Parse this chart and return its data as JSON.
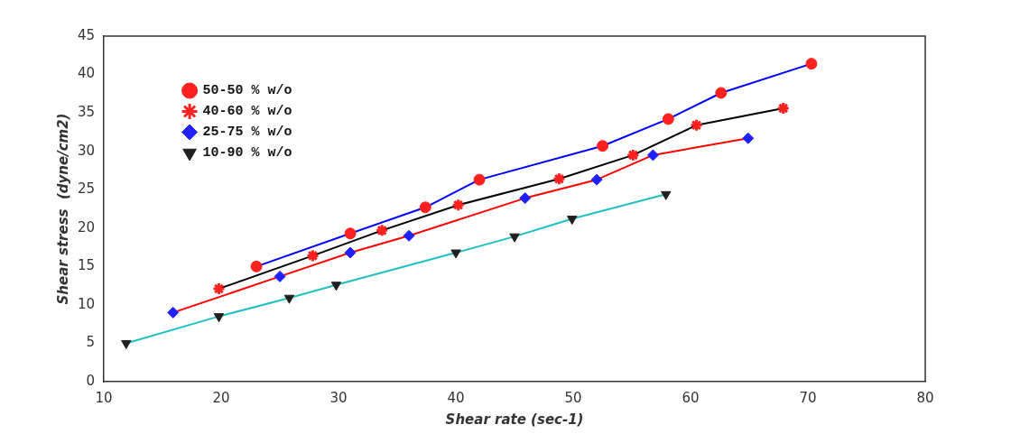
{
  "chart_data": {
    "type": "line",
    "xlabel": "Shear rate (sec-1)",
    "ylabel": "Shear stress  (dyne/cm2)",
    "xlim": [
      10,
      80
    ],
    "xticks": [
      10,
      20,
      30,
      40,
      50,
      60,
      70,
      80
    ],
    "ylim": [
      0,
      45
    ],
    "yticks": [
      0,
      5,
      10,
      15,
      20,
      25,
      30,
      35,
      40,
      45
    ],
    "grid": false,
    "legend": "top left",
    "line_style": "solid",
    "series": [
      {
        "name": "50-50 % w/o",
        "color": "#0000ff",
        "marker": "circle",
        "colors": [
          "#ff2020",
          "#ff2020",
          "#ff2020",
          "#ff2020",
          "#ff2020",
          "#ff2020",
          "#ff2020",
          "#ff2020"
        ],
        "x": [
          23,
          31,
          37.4,
          42,
          52.5,
          58.1,
          62.6,
          70.3
        ],
        "values": [
          15,
          19.3,
          22.7,
          26.3,
          30.7,
          34.2,
          37.6,
          41.4
        ]
      },
      {
        "name": "40-60 % w/o",
        "color": "#000000",
        "marker": "cross",
        "colors": [
          "#ff2020",
          "#ff2020",
          "#ff2020",
          "#ff2020",
          "#ff2020",
          "#ff2020",
          "#ff2020",
          "#ff2020"
        ],
        "x": [
          19.8,
          27.8,
          33.7,
          40.2,
          48.8,
          55.1,
          60.5,
          67.9
        ],
        "values": [
          12.1,
          16.4,
          19.7,
          23,
          26.4,
          29.5,
          33.4,
          35.6
        ]
      },
      {
        "name": "25-75 % w/o",
        "color": "#ff0000",
        "marker": "diamond",
        "colors": [
          "#2020ff",
          "#2020ff",
          "#2020ff",
          "#2020ff",
          "#2020ff",
          "#2020ff",
          "#2020ff",
          "#2020ff"
        ],
        "x": [
          15.9,
          25,
          31,
          36,
          45.9,
          52,
          56.8,
          64.9
        ],
        "values": [
          9,
          13.7,
          16.8,
          19,
          23.9,
          26.3,
          29.5,
          31.7
        ]
      },
      {
        "name": "10-90 % w/o",
        "color": "#20c0c0",
        "marker": "triangle",
        "colors": [
          "#202020",
          "#202020",
          "#202020",
          "#202020",
          "#202020",
          "#202020",
          "#202020",
          "#202020"
        ],
        "x": [
          11.9,
          19.8,
          25.8,
          29.8,
          40,
          45,
          49.9,
          57.9
        ],
        "values": [
          5,
          8.5,
          10.9,
          12.6,
          16.8,
          18.9,
          21.2,
          24.4
        ]
      }
    ]
  }
}
